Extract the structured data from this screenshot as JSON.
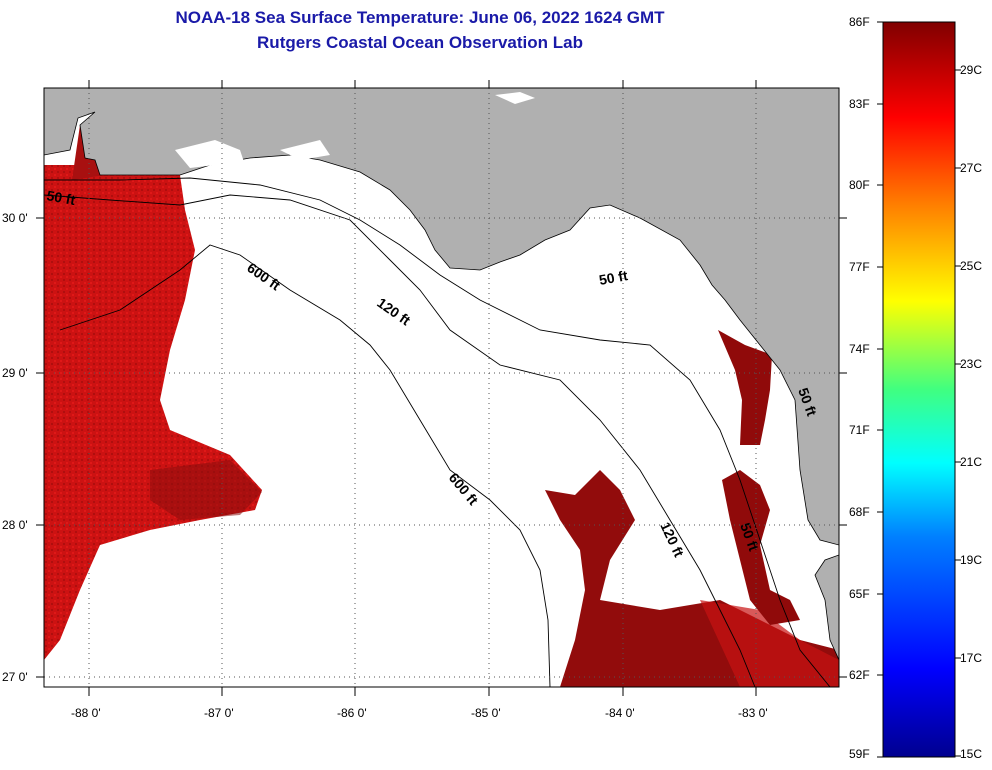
{
  "title": {
    "line1": "NOAA-18 Sea Surface Temperature:  June 06, 2022 1624 GMT",
    "line2": "Rutgers Coastal Ocean Observation Lab"
  },
  "map": {
    "lat_ticks": [
      "30 0'",
      "29 0'",
      "28 0'",
      "27 0'"
    ],
    "lon_ticks": [
      "-88 0'",
      "-87 0'",
      "-86 0'",
      "-85 0'",
      "-84 0'",
      "-83 0'"
    ],
    "contour_labels": [
      "50 ft",
      "600 ft",
      "120 ft",
      "50 ft",
      "600 ft",
      "120 ft",
      "50 ft",
      "50 ft"
    ],
    "colors": {
      "land": "#b0b0b0",
      "ocean_nodata": "#ffffff",
      "sst_warm": "#d01010",
      "sst_hot": "#8a0a0a"
    }
  },
  "colorbar": {
    "f_labels": [
      "86F",
      "83F",
      "80F",
      "77F",
      "74F",
      "71F",
      "68F",
      "65F",
      "62F",
      "59F"
    ],
    "c_labels": [
      "29C",
      "27C",
      "25C",
      "23C",
      "21C",
      "19C",
      "17C",
      "15C"
    ],
    "range_f": [
      59,
      86
    ],
    "range_c": [
      15,
      30
    ]
  }
}
